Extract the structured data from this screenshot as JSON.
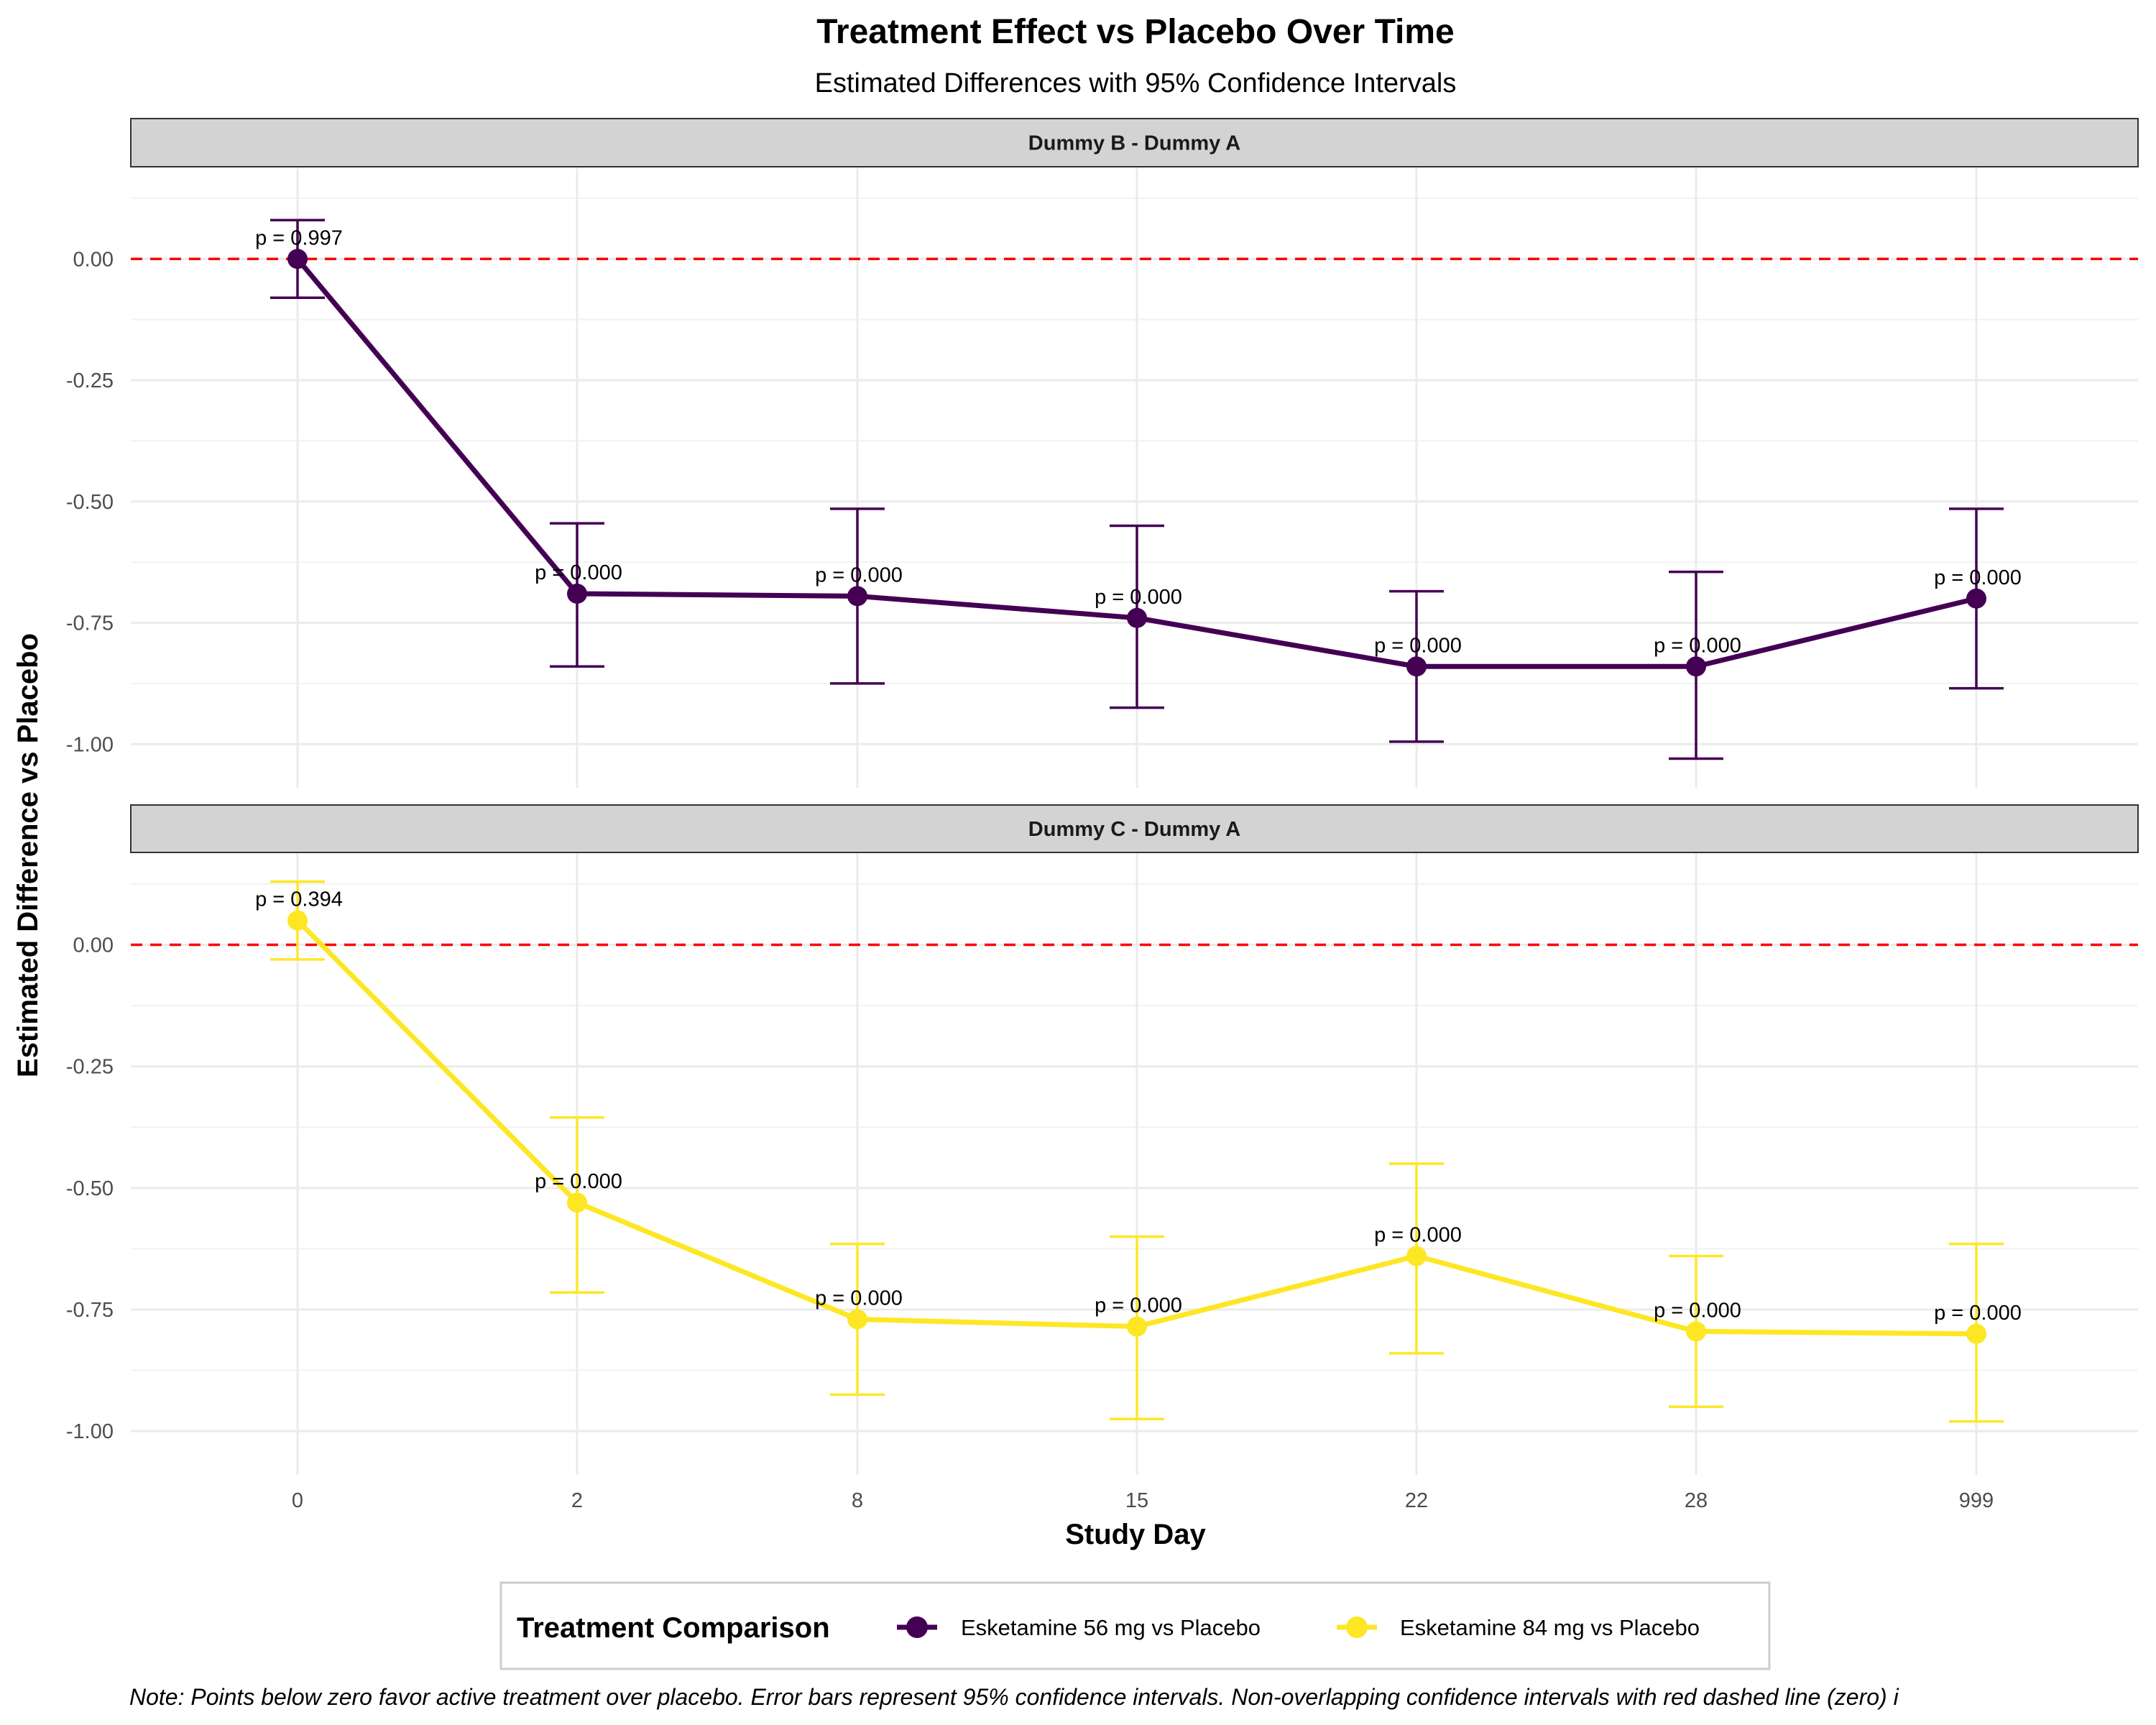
{
  "chart_data": {
    "type": "line",
    "title": "Treatment Effect vs Placebo Over Time",
    "subtitle": "Estimated Differences with 95% Confidence Intervals",
    "xlabel": "Study Day",
    "ylabel": "Estimated Difference vs Placebo",
    "categories": [
      "0",
      "2",
      "8",
      "15",
      "22",
      "28",
      "999"
    ],
    "yticks": [
      "0.00",
      "-0.25",
      "-0.50",
      "-0.75",
      "-1.00"
    ],
    "ylim": [
      -1.09,
      0.19
    ],
    "reference_line": {
      "y": 0,
      "style": "dashed",
      "color": "#ff0000"
    },
    "legend": {
      "title": "Treatment Comparison",
      "position": "bottom"
    },
    "panels": [
      {
        "strip": "Dummy B - Dummy A",
        "series": {
          "name": "Esketamine 56 mg vs Placebo",
          "color": "#440154",
          "values": [
            0.0,
            -0.69,
            -0.695,
            -0.74,
            -0.84,
            -0.84,
            -0.7
          ],
          "lower": [
            -0.08,
            -0.84,
            -0.875,
            -0.925,
            -0.995,
            -1.03,
            -0.885
          ],
          "upper": [
            0.08,
            -0.545,
            -0.515,
            -0.55,
            -0.685,
            -0.645,
            -0.515
          ],
          "p_labels": [
            "p = 0.997",
            "p = 0.000",
            "p = 0.000",
            "p = 0.000",
            "p = 0.000",
            "p = 0.000",
            "p = 0.000"
          ]
        }
      },
      {
        "strip": "Dummy C - Dummy A",
        "series": {
          "name": "Esketamine 84 mg vs Placebo",
          "color": "#FDE725",
          "values": [
            0.05,
            -0.53,
            -0.77,
            -0.785,
            -0.64,
            -0.795,
            -0.8
          ],
          "lower": [
            -0.03,
            -0.715,
            -0.925,
            -0.975,
            -0.84,
            -0.95,
            -0.98
          ],
          "upper": [
            0.13,
            -0.355,
            -0.615,
            -0.6,
            -0.45,
            -0.64,
            -0.615
          ],
          "p_labels": [
            "p = 0.394",
            "p = 0.000",
            "p = 0.000",
            "p = 0.000",
            "p = 0.000",
            "p = 0.000",
            "p = 0.000"
          ]
        }
      }
    ],
    "note": "Note: Points below zero favor active treatment over placebo. Error bars represent 95% confidence intervals. Non-overlapping confidence intervals with red dashed line (zero) i"
  }
}
